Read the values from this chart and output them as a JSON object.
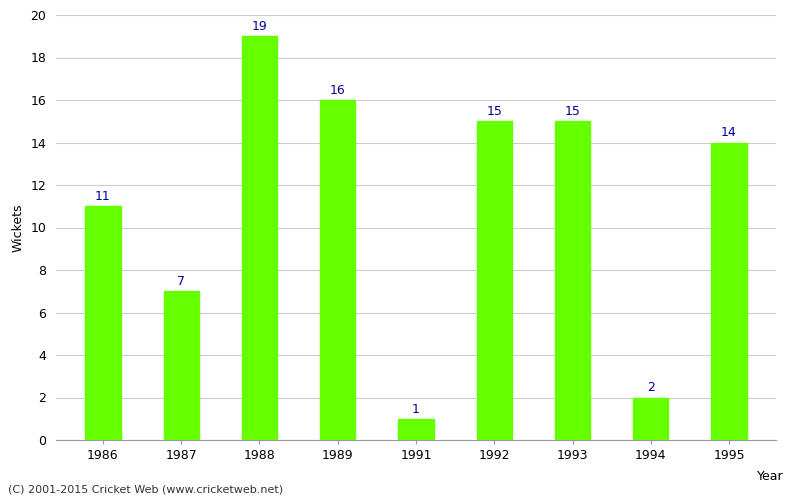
{
  "years": [
    "1986",
    "1987",
    "1988",
    "1989",
    "1991",
    "1992",
    "1993",
    "1994",
    "1995"
  ],
  "values": [
    11,
    7,
    19,
    16,
    1,
    15,
    15,
    2,
    14
  ],
  "bar_color": "#66ff00",
  "bar_edge_color": "#66ff00",
  "label_color": "#000099",
  "xlabel": "Year",
  "ylabel": "Wickets",
  "ylim": [
    0,
    20
  ],
  "yticks": [
    0,
    2,
    4,
    6,
    8,
    10,
    12,
    14,
    16,
    18,
    20
  ],
  "footnote": "(C) 2001-2015 Cricket Web (www.cricketweb.net)",
  "background_color": "#ffffff",
  "grid_color": "#cccccc",
  "label_fontsize": 9,
  "axis_fontsize": 9,
  "footnote_fontsize": 8,
  "bar_width": 0.45
}
